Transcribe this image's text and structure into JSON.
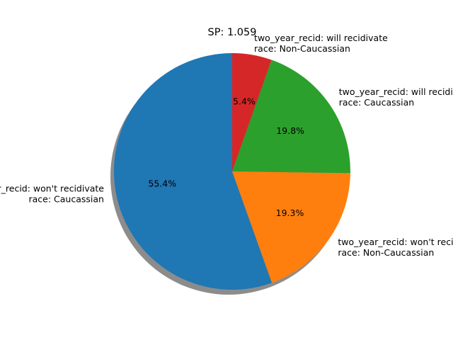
{
  "chart_data": {
    "type": "pie",
    "title": "SP: 1.059",
    "start_angle_deg": 90,
    "direction": "counterclockwise",
    "shadow": true,
    "slices": [
      {
        "label_lines": [
          "two_year_recid: won't recidivate",
          "race: Caucassian"
        ],
        "value": 55.4,
        "pct_label": "55.4%",
        "color": "#1f77b4"
      },
      {
        "label_lines": [
          "two_year_recid: won't recidivate",
          "race: Non-Caucassian"
        ],
        "value": 19.3,
        "pct_label": "19.3%",
        "color": "#ff7f0e"
      },
      {
        "label_lines": [
          "two_year_recid: will recidivate",
          "race: Caucassian"
        ],
        "value": 19.8,
        "pct_label": "19.8%",
        "color": "#2ca02c"
      },
      {
        "label_lines": [
          "two_year_recid: will recidivate",
          "race: Non-Caucassian"
        ],
        "value": 5.4,
        "pct_label": "5.4%",
        "color": "#d62728"
      }
    ]
  }
}
